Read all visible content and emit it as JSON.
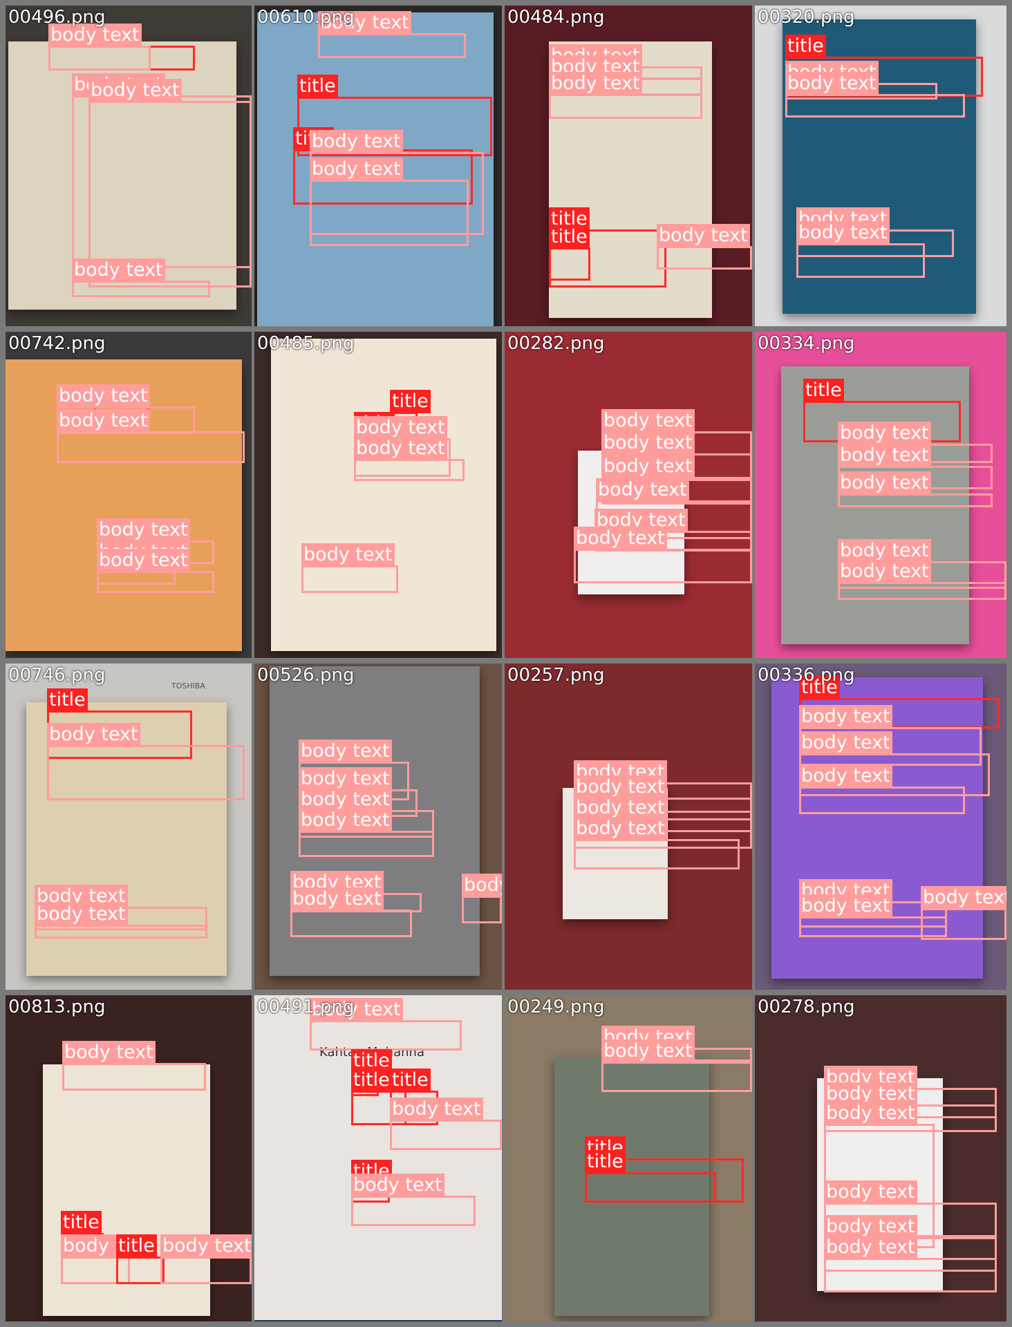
{
  "colors": {
    "title": "#ff2020",
    "body_text": "#ff9d9d",
    "grid_gap": "#7a7a7a",
    "filename_text": "#ffffff"
  },
  "labels": {
    "title": "title",
    "body": "body text"
  },
  "tiles": [
    {
      "file": "00496.png"
    },
    {
      "file": "00610.png"
    },
    {
      "file": "00484.png"
    },
    {
      "file": "00320.png"
    },
    {
      "file": "00742.png"
    },
    {
      "file": "00485.png"
    },
    {
      "file": "00282.png"
    },
    {
      "file": "00334.png"
    },
    {
      "file": "00746.png"
    },
    {
      "file": "00526.png"
    },
    {
      "file": "00257.png"
    },
    {
      "file": "00336.png"
    },
    {
      "file": "00813.png"
    },
    {
      "file": "00491.png"
    },
    {
      "file": "00249.png"
    },
    {
      "file": "00278.png"
    }
  ],
  "cover_text": {
    "kahtan_author": "Kahtan Mohanna",
    "toshiba": "TOSHIBA"
  }
}
